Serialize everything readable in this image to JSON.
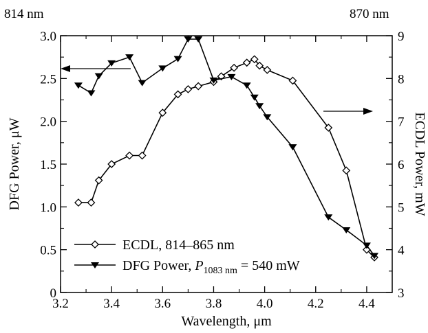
{
  "chart_data": {
    "type": "line",
    "top_labels": {
      "left": "814 nm",
      "right": "870 nm"
    },
    "xlabel": "Wavelength, μm",
    "ylabel_left": "DFG Power, μW",
    "ylabel_right": "ECDL Power, mW",
    "xlim": [
      3.2,
      4.5
    ],
    "ylim_left": [
      0,
      3.0
    ],
    "ylim_right": [
      3,
      9
    ],
    "x_ticks": [
      "3.2",
      "3.4",
      "3.6",
      "3.8",
      "4.0",
      "4.2",
      "4.4"
    ],
    "y_left_ticks": [
      "0",
      "0.5",
      "1.0",
      "1.5",
      "2.0",
      "2.5",
      "3.0"
    ],
    "y_right_ticks": [
      "3",
      "4",
      "5",
      "6",
      "7",
      "8",
      "9"
    ],
    "grid": false,
    "legend_position": "bottom-left",
    "series": [
      {
        "name": "ECDL, 814–865 nm",
        "axis": "right",
        "marker": "open-diamond",
        "x": [
          3.27,
          3.32,
          3.35,
          3.4,
          3.47,
          3.52,
          3.6,
          3.66,
          3.7,
          3.74,
          3.8,
          3.83,
          3.88,
          3.93,
          3.96,
          3.98,
          4.01,
          4.11,
          4.25,
          4.32,
          4.4,
          4.43
        ],
        "y": [
          5.1,
          5.1,
          5.62,
          6.0,
          6.2,
          6.2,
          7.2,
          7.63,
          7.75,
          7.82,
          7.92,
          8.05,
          8.25,
          8.37,
          8.45,
          8.3,
          8.2,
          7.95,
          6.85,
          5.85,
          4.0,
          3.82
        ]
      },
      {
        "name": "DFG Power, P1083 nm = 540 mW",
        "axis": "left",
        "marker": "filled-triangle-down",
        "x": [
          3.27,
          3.32,
          3.35,
          3.4,
          3.47,
          3.52,
          3.6,
          3.66,
          3.7,
          3.74,
          3.8,
          3.87,
          3.93,
          3.96,
          3.98,
          4.01,
          4.11,
          4.25,
          4.32,
          4.4,
          4.43
        ],
        "y": [
          2.42,
          2.33,
          2.53,
          2.68,
          2.75,
          2.45,
          2.62,
          2.73,
          2.96,
          2.96,
          2.48,
          2.52,
          2.42,
          2.28,
          2.18,
          2.05,
          1.7,
          0.88,
          0.73,
          0.55,
          0.43
        ]
      }
    ],
    "legend": {
      "ecdl": "ECDL, 814–865 nm",
      "dfg_prefix": "DFG Power, ",
      "dfg_P": "P",
      "dfg_sub": "1083 nm",
      "dfg_suffix": " = 540 mW"
    }
  }
}
